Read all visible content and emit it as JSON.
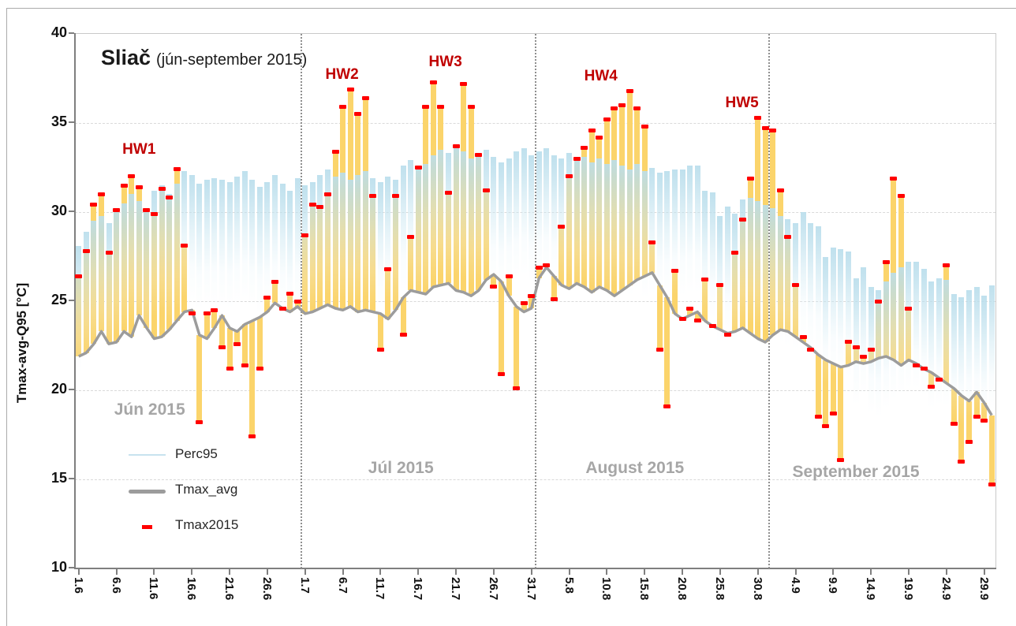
{
  "header": {
    "title": "Sliač",
    "subtitle": "(jún-september 2015)"
  },
  "chart_data": {
    "type": "bar",
    "title": "Sliač (jún-september 2015)",
    "ylabel": "Tmax-avg-Q95 [°C]",
    "ylim": [
      10,
      40
    ],
    "yticks": [
      10,
      15,
      20,
      25,
      30,
      35,
      40
    ],
    "gridlines": [
      15,
      20,
      25,
      30,
      35
    ],
    "legend_position": "inside bottom-left",
    "xtick_labels": [
      "1.6",
      "6.6",
      "11.6",
      "16.6",
      "21.6",
      "26.6",
      "1.7",
      "6.7",
      "11.7",
      "16.7",
      "21.7",
      "26.7",
      "31.7",
      "5.8",
      "10.8",
      "15.8",
      "20.8",
      "25.8",
      "30.8",
      "4.9",
      "9.9",
      "14.9",
      "19.9",
      "24.9",
      "29.9"
    ],
    "xtick_every": 5,
    "days": [
      "1.6",
      "2.6",
      "3.6",
      "4.6",
      "5.6",
      "6.6",
      "7.6",
      "8.6",
      "9.6",
      "10.6",
      "11.6",
      "12.6",
      "13.6",
      "14.6",
      "15.6",
      "16.6",
      "17.6",
      "18.6",
      "19.6",
      "20.6",
      "21.6",
      "22.6",
      "23.6",
      "24.6",
      "25.6",
      "26.6",
      "27.6",
      "28.6",
      "29.6",
      "30.6",
      "1.7",
      "2.7",
      "3.7",
      "4.7",
      "5.7",
      "6.7",
      "7.7",
      "8.7",
      "9.7",
      "10.7",
      "11.7",
      "12.7",
      "13.7",
      "14.7",
      "15.7",
      "16.7",
      "17.7",
      "18.7",
      "19.7",
      "20.7",
      "21.7",
      "22.7",
      "23.7",
      "24.7",
      "25.7",
      "26.7",
      "27.7",
      "28.7",
      "29.7",
      "30.7",
      "31.7",
      "1.8",
      "2.8",
      "3.8",
      "4.8",
      "5.8",
      "6.8",
      "7.8",
      "8.8",
      "9.8",
      "10.8",
      "11.8",
      "12.8",
      "13.8",
      "14.8",
      "15.8",
      "16.8",
      "17.8",
      "18.8",
      "19.8",
      "20.8",
      "21.8",
      "22.8",
      "23.8",
      "24.8",
      "25.8",
      "26.8",
      "27.8",
      "28.8",
      "29.8",
      "30.8",
      "31.8",
      "1.9",
      "2.9",
      "3.9",
      "4.9",
      "5.9",
      "6.9",
      "7.9",
      "8.9",
      "9.9",
      "10.9",
      "11.9",
      "12.9",
      "13.9",
      "14.9",
      "15.9",
      "16.9",
      "17.9",
      "18.9",
      "19.9",
      "20.9",
      "21.9",
      "22.9",
      "23.9",
      "24.9",
      "25.9",
      "26.9",
      "27.9",
      "28.9",
      "29.9",
      "30.9"
    ],
    "series": [
      {
        "name": "Perc95",
        "type": "gradient-bar",
        "color": "#badeec",
        "values": [
          28.1,
          28.9,
          29.5,
          29.8,
          29.4,
          30.2,
          30.5,
          31.0,
          30.6,
          30.2,
          31.2,
          31.5,
          31.0,
          31.6,
          32.3,
          32.1,
          31.6,
          31.8,
          31.9,
          31.8,
          31.7,
          32.0,
          32.3,
          31.8,
          31.4,
          31.7,
          32.1,
          31.6,
          31.2,
          31.9,
          31.5,
          31.7,
          32.1,
          32.4,
          32.0,
          32.2,
          31.8,
          32.1,
          32.3,
          31.9,
          31.7,
          32.0,
          31.8,
          32.6,
          32.9,
          32.4,
          32.7,
          33.2,
          33.5,
          33.3,
          33.6,
          33.4,
          33.0,
          33.3,
          33.5,
          33.1,
          32.8,
          33.0,
          33.4,
          33.6,
          33.2,
          33.4,
          33.6,
          33.2,
          33.0,
          33.3,
          32.9,
          33.1,
          32.8,
          33.0,
          32.7,
          32.9,
          32.6,
          32.4,
          32.7,
          32.3,
          32.5,
          32.2,
          32.3,
          32.4,
          32.4,
          32.6,
          32.6,
          31.2,
          31.1,
          29.8,
          30.3,
          29.9,
          30.7,
          30.8,
          30.6,
          30.4,
          30.2,
          29.8,
          29.6,
          29.4,
          30.0,
          29.4,
          29.2,
          27.5,
          28.0,
          27.9,
          27.8,
          26.3,
          26.9,
          25.8,
          25.6,
          26.1,
          26.6,
          26.9,
          27.2,
          27.2,
          26.8,
          26.1,
          26.3,
          26.2,
          25.4,
          25.2,
          25.6,
          25.8,
          25.3,
          25.9
        ]
      },
      {
        "name": "Tmax_avg",
        "type": "line",
        "color": "#9c9c9c",
        "values": [
          21.9,
          22.1,
          22.6,
          23.3,
          22.6,
          22.7,
          23.3,
          23.0,
          24.2,
          23.5,
          22.9,
          23.0,
          23.4,
          23.9,
          24.4,
          24.5,
          23.1,
          22.9,
          23.5,
          24.2,
          23.5,
          23.3,
          23.7,
          23.9,
          24.1,
          24.4,
          24.9,
          24.6,
          24.4,
          24.7,
          24.3,
          24.4,
          24.6,
          24.8,
          24.6,
          24.5,
          24.7,
          24.4,
          24.5,
          24.4,
          24.3,
          24.0,
          24.5,
          25.2,
          25.6,
          25.5,
          25.4,
          25.8,
          25.9,
          26.0,
          25.6,
          25.5,
          25.3,
          25.6,
          26.2,
          26.5,
          26.1,
          25.3,
          24.7,
          24.4,
          24.6,
          26.3,
          26.9,
          26.4,
          25.9,
          25.7,
          26.0,
          25.8,
          25.5,
          25.8,
          25.6,
          25.3,
          25.6,
          25.9,
          26.2,
          26.4,
          26.6,
          25.9,
          25.2,
          24.3,
          24.0,
          24.2,
          24.4,
          23.9,
          23.6,
          23.4,
          23.2,
          23.3,
          23.5,
          23.2,
          22.9,
          22.7,
          23.1,
          23.4,
          23.3,
          23.0,
          22.7,
          22.4,
          22.0,
          21.7,
          21.5,
          21.3,
          21.4,
          21.6,
          21.5,
          21.6,
          21.8,
          21.9,
          21.7,
          21.4,
          21.7,
          21.5,
          21.2,
          21.0,
          20.7,
          20.4,
          20.1,
          19.7,
          19.4,
          19.9,
          19.3,
          18.6
        ]
      },
      {
        "name": "Tmax2015",
        "type": "dash",
        "color": "#ff0000",
        "values": [
          26.4,
          27.8,
          30.4,
          31.0,
          27.7,
          30.1,
          31.5,
          32.0,
          31.4,
          30.1,
          29.9,
          31.3,
          30.8,
          32.4,
          28.1,
          24.3,
          18.2,
          24.3,
          24.5,
          22.4,
          21.2,
          22.6,
          21.4,
          17.4,
          21.2,
          25.2,
          26.1,
          24.6,
          25.4,
          25.0,
          28.7,
          30.4,
          30.3,
          31.0,
          33.4,
          35.9,
          36.9,
          35.5,
          36.4,
          30.9,
          22.3,
          26.8,
          30.9,
          23.1,
          28.6,
          32.5,
          35.9,
          37.3,
          35.9,
          31.1,
          33.7,
          37.2,
          35.9,
          33.2,
          31.2,
          25.8,
          20.9,
          26.4,
          20.1,
          24.9,
          25.3,
          26.9,
          27.0,
          25.1,
          29.2,
          32.0,
          33.0,
          33.6,
          34.6,
          34.2,
          35.2,
          35.8,
          36.0,
          36.8,
          35.8,
          34.8,
          28.3,
          22.3,
          19.1,
          26.7,
          24.0,
          24.6,
          23.9,
          26.2,
          23.6,
          25.9,
          23.1,
          27.7,
          29.6,
          31.9,
          35.3,
          34.7,
          34.6,
          31.2,
          28.6,
          25.9,
          23.0,
          22.3,
          18.5,
          18.0,
          18.7,
          16.1,
          22.7,
          22.4,
          21.9,
          22.3,
          25.0,
          27.2,
          31.9,
          30.9,
          24.6,
          21.4,
          21.2,
          20.2,
          20.6,
          27.0,
          18.1,
          16.0,
          17.1,
          18.5,
          18.3,
          14.7
        ]
      }
    ],
    "bar_fill_color": "#fbd46b",
    "heatwave_label_color": "#c00000",
    "month_label_color": "#a6a6a6",
    "month_separators_after": [
      "30.6",
      "31.7",
      "31.8"
    ],
    "annotations": {
      "heatwaves": [
        {
          "label": "HW1",
          "day_index": 8.0,
          "temp": 33.5
        },
        {
          "label": "HW2",
          "day_index": 34.9,
          "temp": 37.7
        },
        {
          "label": "HW3",
          "day_index": 48.6,
          "temp": 38.4
        },
        {
          "label": "HW4",
          "day_index": 69.2,
          "temp": 37.6
        },
        {
          "label": "HW5",
          "day_index": 87.9,
          "temp": 36.1
        }
      ],
      "months": [
        {
          "label": "Jún 2015",
          "day_index": 9.4,
          "temp": 18.9
        },
        {
          "label": "Júl 2015",
          "day_index": 42.7,
          "temp": 15.6
        },
        {
          "label": "August 2015",
          "day_index": 73.7,
          "temp": 15.6
        },
        {
          "label": "September 2015",
          "day_index": 103.0,
          "temp": 15.4
        }
      ]
    }
  }
}
